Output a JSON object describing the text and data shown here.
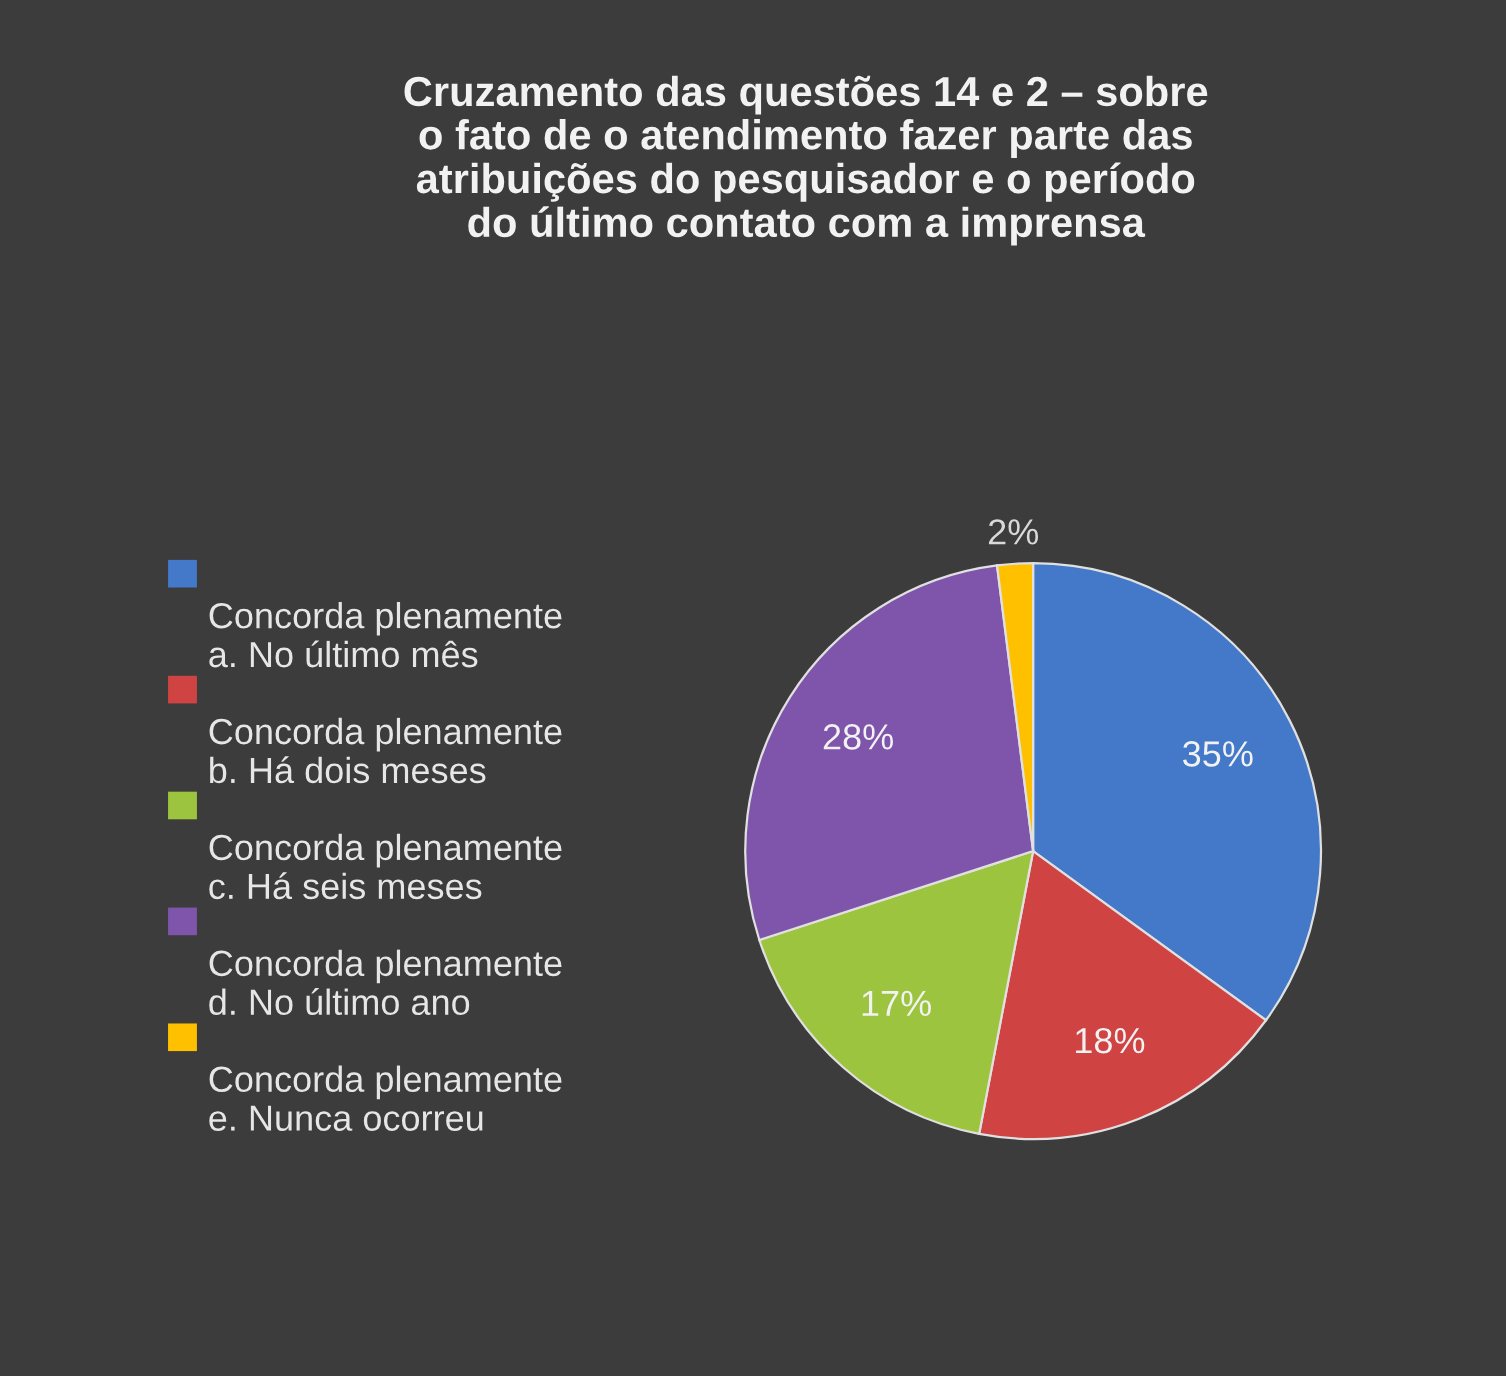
{
  "chart_data": {
    "type": "pie",
    "title": "Cruzamento das questões 14 e 2 – sobre\no fato de o atendimento fazer parte das\natribuições do pesquisador e o período\ndo último contato com a imprensa",
    "categories": [
      "Concorda plenamente\na. No último mês",
      "Concorda plenamente\nb. Há dois meses",
      "Concorda plenamente\nc. Há seis meses",
      "Concorda plenamente\nd. No último ano",
      "Concorda plenamente\ne. Nunca ocorreu"
    ],
    "values": [
      35,
      18,
      17,
      28,
      2
    ],
    "colors": [
      "#4379c8",
      "#d04343",
      "#9cc43f",
      "#7f55ab",
      "#ffc000"
    ],
    "value_labels": [
      "35%",
      "18%",
      "17%",
      "28%",
      "2%"
    ],
    "legend": "left"
  }
}
